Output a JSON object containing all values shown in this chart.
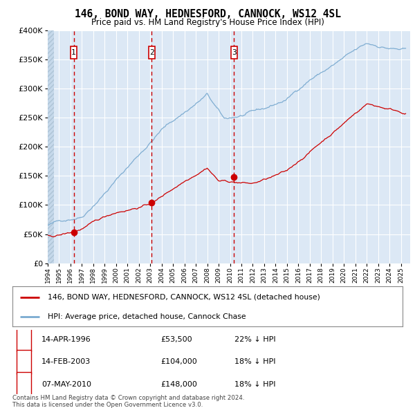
{
  "title": "146, BOND WAY, HEDNESFORD, CANNOCK, WS12 4SL",
  "subtitle": "Price paid vs. HM Land Registry's House Price Index (HPI)",
  "legend_line1": "146, BOND WAY, HEDNESFORD, CANNOCK, WS12 4SL (detached house)",
  "legend_line2": "HPI: Average price, detached house, Cannock Chase",
  "footer1": "Contains HM Land Registry data © Crown copyright and database right 2024.",
  "footer2": "This data is licensed under the Open Government Licence v3.0.",
  "table_entries": [
    {
      "num": 1,
      "date": "14-APR-1996",
      "price": "£53,500",
      "pct": "22% ↓ HPI"
    },
    {
      "num": 2,
      "date": "14-FEB-2003",
      "price": "£104,000",
      "pct": "18% ↓ HPI"
    },
    {
      "num": 3,
      "date": "07-MAY-2010",
      "price": "£148,000",
      "pct": "18% ↓ HPI"
    }
  ],
  "sale_dates_decimal": [
    1996.28,
    2003.12,
    2010.35
  ],
  "sale_prices": [
    53500,
    104000,
    148000
  ],
  "vline_color": "#cc0000",
  "sale_dot_color": "#cc0000",
  "hpi_color": "#7aaad0",
  "price_color": "#cc0000",
  "bg_color": "#dce8f5",
  "ylim": [
    0,
    400000
  ],
  "xlim_start": 1994.0,
  "xlim_end": 2025.8
}
